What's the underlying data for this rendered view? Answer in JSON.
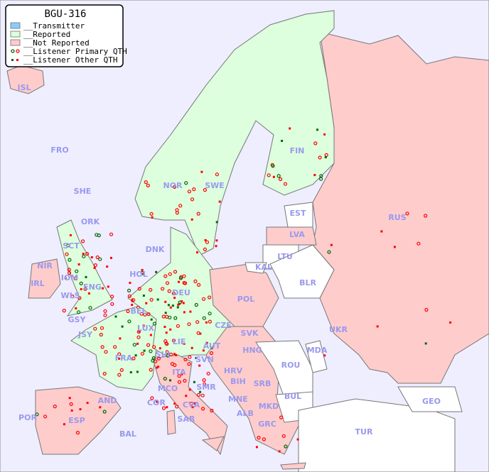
{
  "legend": {
    "title": "BGU-316",
    "items": [
      {
        "label": "__Transmitter",
        "color": "#88ccff"
      },
      {
        "label": "__Reported",
        "color": "#ddffdd"
      },
      {
        "label": "__Not Reported",
        "color": "#ffcccc"
      },
      {
        "label": "__Listener Primary QTH",
        "color": "#cc0000"
      },
      {
        "label": "__Listener Other QTH",
        "color": "#cc0000"
      }
    ]
  },
  "colors": {
    "sea": "#eeeeff",
    "reported": "#ddffdd",
    "not_reported": "#ffcccc",
    "no_data": "#ffffff",
    "label": "#9999ee",
    "listener": "#ff0000",
    "listener_alt": "#006600"
  },
  "countries": {
    "ISL": "ISL",
    "FRO": "FRO",
    "SHE": "SHE",
    "ORK": "ORK",
    "NOR": "NOR",
    "SWE": "SWE",
    "FIN": "FIN",
    "EST": "EST",
    "RUS": "RUS",
    "LVA": "LVA",
    "LTU": "LTU",
    "KAL": "KAL",
    "BLR": "BLR",
    "DNK": "DNK",
    "SCT": "SCT",
    "NIR": "NIR",
    "IRL": "IRL",
    "IOM": "IOM",
    "WLS": "WLS",
    "ENG": "ENG",
    "HOL": "HOL",
    "DEU": "DEU",
    "POL": "POL",
    "BEL": "BEL",
    "LUX": "LUX",
    "GSY": "GSY",
    "JSY": "JSY",
    "CZE": "CZE",
    "SVK": "SVK",
    "UKR": "UKR",
    "MDA": "MDA",
    "FRA": "FRA",
    "SUI": "SUI",
    "LIE": "LIE",
    "AUT": "AUT",
    "HNG": "HNG",
    "ROU": "ROU",
    "SVN": "SVN",
    "HRV": "HRV",
    "ITA": "ITA",
    "SMR": "SMR",
    "BIH": "BIH",
    "SRB": "SRB",
    "BUL": "BUL",
    "MCO": "MCO",
    "COR": "COR",
    "CVA": "CVA",
    "MNE": "MNE",
    "ALB": "ALB",
    "MKD": "MKD",
    "GEO": "GEO",
    "AND": "AND",
    "POR": "POR",
    "ESP": "ESP",
    "BAL": "BAL",
    "SAR": "SAR",
    "GRC": "GRC",
    "TUR": "TUR"
  }
}
